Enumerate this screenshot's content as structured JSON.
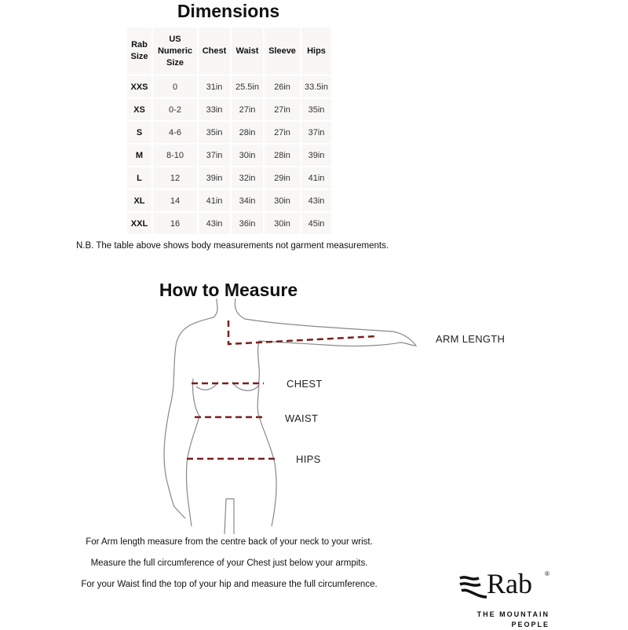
{
  "dimensions": {
    "title": "Dimensions",
    "headers": [
      "Rab Size",
      "US Numeric Size",
      "Chest",
      "Waist",
      "Sleeve",
      "Hips"
    ],
    "rows": [
      [
        "XXS",
        "0",
        "31in",
        "25.5in",
        "26in",
        "33.5in"
      ],
      [
        "XS",
        "0-2",
        "33in",
        "27in",
        "27in",
        "35in"
      ],
      [
        "S",
        "4-6",
        "35in",
        "28in",
        "27in",
        "37in"
      ],
      [
        "M",
        "8-10",
        "37in",
        "30in",
        "28in",
        "39in"
      ],
      [
        "L",
        "12",
        "39in",
        "32in",
        "29in",
        "41in"
      ],
      [
        "XL",
        "14",
        "41in",
        "34in",
        "30in",
        "43in"
      ],
      [
        "XXL",
        "16",
        "43in",
        "36in",
        "30in",
        "45in"
      ]
    ],
    "note": "N.B. The table above shows body measurements not garment measurements."
  },
  "measure": {
    "title": "How to Measure",
    "labels": {
      "arm": "ARM LENGTH",
      "chest": "CHEST",
      "waist": "WAIST",
      "hips": "HIPS"
    },
    "line_color": "#7a1e1e",
    "instructions": [
      "For Arm length measure from the centre back of your neck to your wrist.",
      "Measure the full circumference of your Chest just below your armpits.",
      "For your Waist find the top of your hip and measure the full circumference."
    ]
  },
  "logo": {
    "word": "Rab",
    "mark": "®",
    "tagline_1": "THE MOUNTAIN",
    "tagline_2": "PEOPLE"
  }
}
